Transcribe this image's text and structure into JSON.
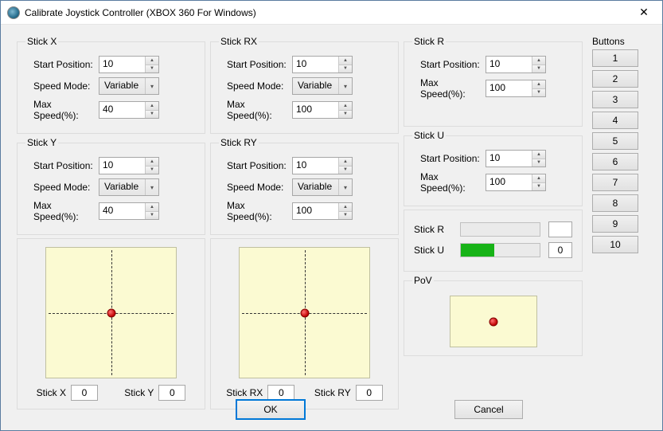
{
  "window": {
    "title": "Calibrate Joystick Controller (XBOX 360 For Windows)"
  },
  "labels": {
    "startPos": "Start Position:",
    "speedMode": "Speed Mode:",
    "maxSpeed": "Max Speed(%):",
    "buttons": "Buttons",
    "pov": "PoV"
  },
  "sticks": {
    "x": {
      "legend": "Stick X",
      "start": "10",
      "mode": "Variable",
      "max": "40"
    },
    "y": {
      "legend": "Stick Y",
      "start": "10",
      "mode": "Variable",
      "max": "40"
    },
    "rx": {
      "legend": "Stick RX",
      "start": "10",
      "mode": "Variable",
      "max": "100"
    },
    "ry": {
      "legend": "Stick RY",
      "start": "10",
      "mode": "Variable",
      "max": "100"
    },
    "r": {
      "legend": "Stick R",
      "start": "10",
      "max": "100"
    },
    "u": {
      "legend": "Stick U",
      "start": "10",
      "max": "100"
    }
  },
  "padLeft": {
    "xLabel": "Stick X",
    "xVal": "0",
    "yLabel": "Stick Y",
    "yVal": "0"
  },
  "padRight": {
    "xLabel": "Stick RX",
    "xVal": "0",
    "yLabel": "Stick RY",
    "yVal": "0"
  },
  "bars": {
    "r": {
      "label": "Stick R",
      "fillPct": 0,
      "value": ""
    },
    "u": {
      "label": "Stick U",
      "fillPct": 42,
      "value": "0"
    }
  },
  "styles": {
    "padBg": "#fbfad2",
    "dotColor": "#c00000",
    "barFill": "#17b317"
  },
  "buttons": [
    "1",
    "2",
    "3",
    "4",
    "5",
    "6",
    "7",
    "8",
    "9",
    "10"
  ],
  "footer": {
    "ok": "OK",
    "cancel": "Cancel"
  }
}
